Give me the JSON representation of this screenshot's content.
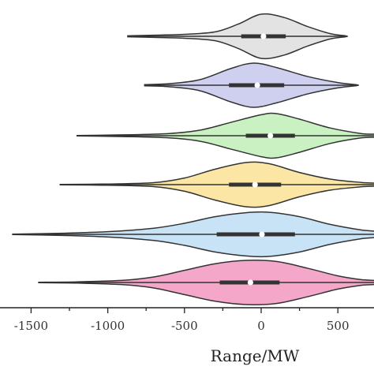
{
  "chart_data": {
    "type": "violin",
    "orientation": "horizontal",
    "xlabel": "Range/MW",
    "xlim": [
      -1650,
      750
    ],
    "xticks": [
      -1500,
      -1000,
      -500,
      0,
      500
    ],
    "xtick_labels": [
      "-1500",
      "-1000",
      "-500",
      "0",
      "500"
    ],
    "grid": false,
    "violins": [
      {
        "color": "#e3e3e3",
        "min": -870,
        "max": 550,
        "q1": -130,
        "q3": 160,
        "median": 15,
        "profile": [
          [
            -870,
            0.02
          ],
          [
            -700,
            0.05
          ],
          [
            -500,
            0.09
          ],
          [
            -300,
            0.2
          ],
          [
            -150,
            0.55
          ],
          [
            0,
            1.0
          ],
          [
            150,
            0.85
          ],
          [
            300,
            0.45
          ],
          [
            450,
            0.12
          ],
          [
            550,
            0.02
          ]
        ]
      },
      {
        "color": "#cfd0f0",
        "min": -760,
        "max": 620,
        "q1": -210,
        "q3": 150,
        "median": -25,
        "profile": [
          [
            -760,
            0.03
          ],
          [
            -600,
            0.07
          ],
          [
            -400,
            0.25
          ],
          [
            -200,
            0.75
          ],
          [
            -50,
            1.0
          ],
          [
            100,
            0.8
          ],
          [
            300,
            0.4
          ],
          [
            500,
            0.12
          ],
          [
            620,
            0.02
          ]
        ]
      },
      {
        "color": "#c9f1c1",
        "min": -1200,
        "max": 750,
        "q1": -100,
        "q3": 220,
        "median": 60,
        "profile": [
          [
            -1200,
            0.01
          ],
          [
            -900,
            0.04
          ],
          [
            -600,
            0.1
          ],
          [
            -400,
            0.25
          ],
          [
            -200,
            0.6
          ],
          [
            0,
            0.95
          ],
          [
            100,
            1.0
          ],
          [
            250,
            0.75
          ],
          [
            450,
            0.35
          ],
          [
            650,
            0.1
          ],
          [
            750,
            0.06
          ]
        ]
      },
      {
        "color": "#fbe6a6",
        "min": -1310,
        "max": 750,
        "q1": -210,
        "q3": 130,
        "median": -40,
        "profile": [
          [
            -1310,
            0.01
          ],
          [
            -1000,
            0.03
          ],
          [
            -700,
            0.09
          ],
          [
            -500,
            0.3
          ],
          [
            -300,
            0.7
          ],
          [
            -100,
            1.0
          ],
          [
            50,
            0.95
          ],
          [
            250,
            0.55
          ],
          [
            450,
            0.25
          ],
          [
            650,
            0.1
          ],
          [
            750,
            0.06
          ]
        ]
      },
      {
        "color": "#c8e2f6",
        "min": -1620,
        "max": 750,
        "q1": -290,
        "q3": 220,
        "median": 5,
        "profile": [
          [
            -1620,
            0.01
          ],
          [
            -1300,
            0.05
          ],
          [
            -1000,
            0.12
          ],
          [
            -700,
            0.28
          ],
          [
            -500,
            0.5
          ],
          [
            -300,
            0.8
          ],
          [
            -100,
            0.98
          ],
          [
            50,
            1.0
          ],
          [
            250,
            0.8
          ],
          [
            450,
            0.45
          ],
          [
            650,
            0.2
          ],
          [
            750,
            0.12
          ]
        ]
      },
      {
        "color": "#f4a7c9",
        "min": -1450,
        "max": 750,
        "q1": -270,
        "q3": 120,
        "median": -70,
        "profile": [
          [
            -1450,
            0.01
          ],
          [
            -1200,
            0.03
          ],
          [
            -900,
            0.1
          ],
          [
            -700,
            0.25
          ],
          [
            -500,
            0.55
          ],
          [
            -300,
            0.85
          ],
          [
            -100,
            1.0
          ],
          [
            100,
            0.95
          ],
          [
            300,
            0.65
          ],
          [
            500,
            0.3
          ],
          [
            650,
            0.13
          ],
          [
            750,
            0.08
          ]
        ]
      }
    ]
  }
}
